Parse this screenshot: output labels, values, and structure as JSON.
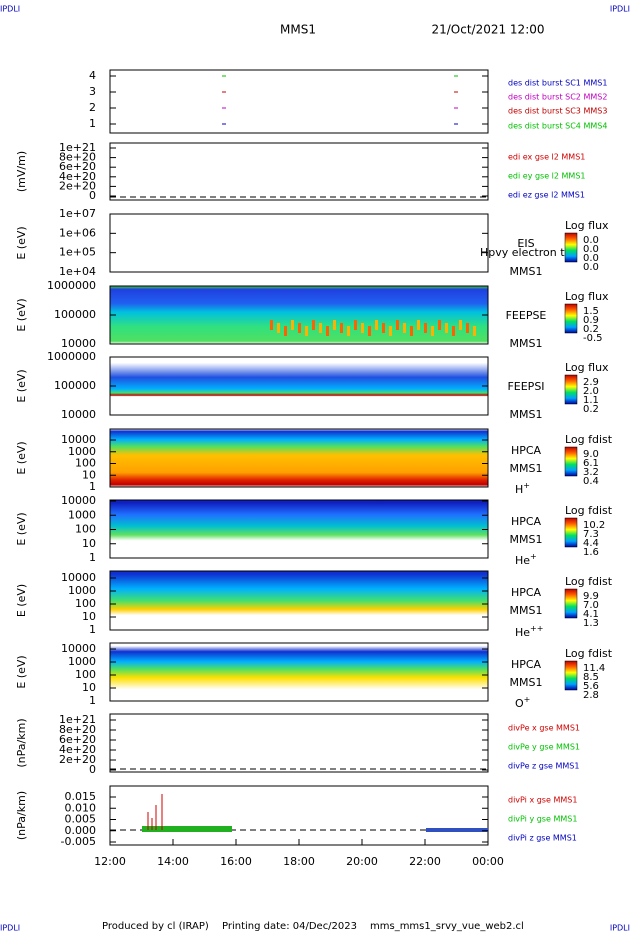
{
  "header": {
    "corner_left": "IPDLI",
    "corner_right": "IPDLI",
    "spacecraft": "MMS1",
    "datetime": "21/Oct/2021 12:00"
  },
  "panels": [
    {
      "yticks": [
        "4",
        "3",
        "2",
        "1"
      ],
      "legend": [
        {
          "text": "des dist burst SC1 MMS1",
          "color": "#0000c0"
        },
        {
          "text": "des dist burst SC2 MMS2",
          "color": "#c000c0"
        },
        {
          "text": "des dist burst SC3 MMS3",
          "color": "#c00000"
        },
        {
          "text": "des dist burst SC4 MMS4",
          "color": "#00c000"
        }
      ]
    },
    {
      "ylabel": "(mV/m)",
      "yticks": [
        "1e+21",
        "8e+20",
        "6e+20",
        "4e+20",
        "2e+20",
        "0"
      ],
      "legend": [
        {
          "text": "edi ex gse l2 MMS1",
          "color": "#d00000"
        },
        {
          "text": "edi ey gse l2 MMS1",
          "color": "#00c000"
        },
        {
          "text": "edi ez gse l2 MMS1",
          "color": "#0000c0"
        }
      ]
    },
    {
      "ylabel": "E (eV)",
      "yticks": [
        "1e+07",
        "1e+06",
        "1e+05",
        "1e+04"
      ],
      "labels": [
        "EIS",
        "MMS1"
      ],
      "overlay": "Hpvy electron to",
      "colorbar": {
        "title": "Log flux",
        "ticks": [
          "0.0",
          "0.0",
          "0.0",
          "0.0"
        ]
      }
    },
    {
      "ylabel": "E (eV)",
      "yticks": [
        "1000000",
        "100000",
        "10000"
      ],
      "labels": [
        "FEEPSE",
        "MMS1"
      ],
      "colorbar": {
        "title": "Log flux",
        "ticks": [
          "1.5",
          "0.9",
          "0.2",
          "-0.5"
        ]
      }
    },
    {
      "ylabel": "E (eV)",
      "yticks": [
        "1000000",
        "100000",
        "10000"
      ],
      "labels": [
        "FEEPSI",
        "MMS1"
      ],
      "colorbar": {
        "title": "Log flux",
        "ticks": [
          "2.9",
          "2.0",
          "1.1",
          "0.2"
        ]
      }
    },
    {
      "ylabel": "E (eV)",
      "yticks": [
        "10000",
        "1000",
        "100",
        "10",
        "1"
      ],
      "labels": [
        "HPCA",
        "MMS1"
      ],
      "species": {
        "base": "H",
        "sup": "+"
      },
      "colorbar": {
        "title": "Log fdist",
        "ticks": [
          "9.0",
          "6.1",
          "3.2",
          "0.4"
        ]
      }
    },
    {
      "ylabel": "E (eV)",
      "yticks": [
        "10000",
        "1000",
        "100",
        "10",
        "1"
      ],
      "labels": [
        "HPCA",
        "MMS1"
      ],
      "species": {
        "base": "He",
        "sup": "+"
      },
      "colorbar": {
        "title": "Log fdist",
        "ticks": [
          "10.2",
          "7.3",
          "4.4",
          "1.6"
        ]
      }
    },
    {
      "ylabel": "E (eV)",
      "yticks": [
        "10000",
        "1000",
        "100",
        "10",
        "1"
      ],
      "labels": [
        "HPCA",
        "MMS1"
      ],
      "species": {
        "base": "He",
        "sup": "++"
      },
      "colorbar": {
        "title": "Log fdist",
        "ticks": [
          "9.9",
          "7.0",
          "4.1",
          "1.3"
        ]
      }
    },
    {
      "ylabel": "E (eV)",
      "yticks": [
        "10000",
        "1000",
        "100",
        "10",
        "1"
      ],
      "labels": [
        "HPCA",
        "MMS1"
      ],
      "species": {
        "base": "O",
        "sup": "+"
      },
      "colorbar": {
        "title": "Log fdist",
        "ticks": [
          "11.4",
          "8.5",
          "5.6",
          "2.8"
        ]
      }
    },
    {
      "ylabel": "(nPa/km)",
      "yticks": [
        "1e+21",
        "8e+20",
        "6e+20",
        "4e+20",
        "2e+20",
        "0"
      ],
      "legend": [
        {
          "text": "divPe x gse MMS1",
          "color": "#d00000"
        },
        {
          "text": "divPe y gse MMS1",
          "color": "#00c000"
        },
        {
          "text": "divPe z gse MMS1",
          "color": "#0000c0"
        }
      ]
    },
    {
      "ylabel": "(nPa/km)",
      "yticks": [
        "0.015",
        "0.010",
        "0.005",
        "0.000",
        "-0.005"
      ],
      "legend": [
        {
          "text": "divPi x gse MMS1",
          "color": "#d00000"
        },
        {
          "text": "divPi y gse MMS1",
          "color": "#00c000"
        },
        {
          "text": "divPi z gse MMS1",
          "color": "#0000c0"
        }
      ]
    }
  ],
  "xticks": [
    "12:00",
    "14:00",
    "16:00",
    "18:00",
    "20:00",
    "22:00",
    "00:00"
  ],
  "footer": {
    "corner_left": "IPDLI",
    "corner_right": "IPDLI",
    "credit": "Produced by cl (IRAP)",
    "printing": "Printing date: 04/Dec/2023",
    "file": "mms_mms1_srvy_vue_web2.cl"
  }
}
